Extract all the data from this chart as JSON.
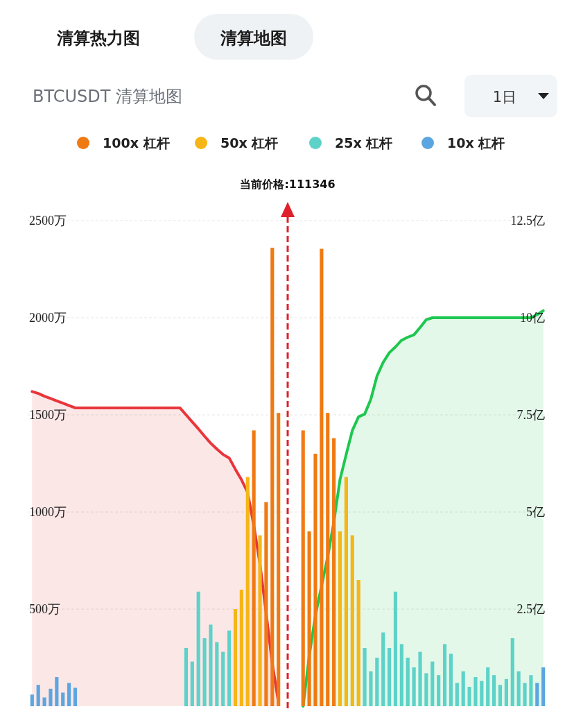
{
  "chart_data": {
    "type": "bar",
    "title": "BTCUSDT 清算地图",
    "annotations": [
      "清算热力图",
      "清算地图",
      "1日"
    ],
    "categories": [
      null,
      null,
      null,
      null,
      null,
      null,
      null,
      null,
      null,
      null,
      null,
      null,
      null,
      null,
      null,
      null,
      null,
      null,
      null,
      null,
      null,
      null,
      null,
      null,
      null,
      null,
      null,
      null,
      null,
      null,
      null,
      null,
      null,
      null,
      null,
      null,
      null,
      null,
      null,
      null,
      null,
      null,
      null,
      null,
      null,
      null,
      null,
      null,
      null,
      null,
      null,
      null,
      null,
      null,
      null,
      null,
      null,
      null,
      null,
      null,
      null,
      null,
      null,
      null,
      null,
      null,
      null,
      null,
      null,
      null,
      null,
      null,
      null,
      null,
      null,
      null,
      null,
      null,
      null,
      null,
      null,
      null,
      null,
      null
    ],
    "ylim": [
      0,
      2500
    ],
    "yticks": [
      {
        "value": 500,
        "label": "500万"
      },
      {
        "value": 1000,
        "label": "1000万"
      },
      {
        "value": 1500,
        "label": "1500万"
      },
      {
        "value": 2000,
        "label": "2000万"
      },
      {
        "value": 2500,
        "label": "2500万"
      }
    ],
    "y2lim": [
      0,
      12.5
    ],
    "y2ticks": [
      {
        "value": 2.5,
        "label": "2.5亿"
      },
      {
        "value": 5,
        "label": "5亿"
      },
      {
        "value": 7.5,
        "label": "7.5亿"
      },
      {
        "value": 10,
        "label": "10亿"
      },
      {
        "value": 12.5,
        "label": "12.5亿"
      }
    ],
    "tick_labels": [
      "y",
      "y2"
    ],
    "grid": "y",
    "legend": "top",
    "ref_lines": [
      {
        "axis": "x",
        "label": "当前价格:111346",
        "color": "#e0202a",
        "line_style": "dashed"
      }
    ],
    "series": [
      {
        "name": "100x 杠杆",
        "color": "#f07a12",
        "values": [
          null,
          null,
          null,
          null,
          null,
          null,
          null,
          null,
          null,
          null,
          null,
          null,
          null,
          null,
          null,
          null,
          null,
          null,
          null,
          null,
          null,
          null,
          null,
          null,
          null,
          null,
          null,
          null,
          null,
          null,
          null,
          null,
          null,
          null,
          null,
          null,
          1420,
          null,
          1050,
          2360,
          1510,
          null,
          null,
          null,
          1420,
          900,
          1300,
          2355,
          1510,
          1380,
          null,
          null,
          null,
          null,
          null,
          null,
          null,
          null,
          null,
          null,
          null,
          null,
          null,
          null,
          null,
          null,
          null,
          null,
          null,
          null,
          null,
          null,
          null,
          null,
          null,
          null,
          null,
          null,
          null,
          null,
          null,
          null,
          null,
          null
        ]
      },
      {
        "name": "50x 杠杆",
        "color": "#f5b616",
        "values": [
          null,
          null,
          null,
          null,
          null,
          null,
          null,
          null,
          null,
          null,
          null,
          null,
          null,
          null,
          null,
          null,
          null,
          null,
          null,
          null,
          null,
          null,
          null,
          null,
          null,
          null,
          null,
          null,
          null,
          null,
          null,
          null,
          null,
          500,
          600,
          1180,
          null,
          880,
          null,
          null,
          null,
          null,
          null,
          null,
          null,
          null,
          null,
          null,
          null,
          null,
          900,
          1180,
          880,
          650,
          null,
          null,
          null,
          null,
          null,
          null,
          null,
          null,
          null,
          null,
          null,
          null,
          null,
          null,
          null,
          null,
          null,
          null,
          null,
          null,
          null,
          null,
          null,
          null,
          null,
          null,
          null,
          null,
          null,
          null
        ]
      },
      {
        "name": "25x 杠杆",
        "color": "#5dd2c8",
        "values": [
          null,
          null,
          null,
          null,
          null,
          null,
          null,
          null,
          null,
          null,
          null,
          null,
          null,
          null,
          null,
          null,
          null,
          null,
          null,
          null,
          null,
          null,
          null,
          null,
          null,
          300,
          230,
          590,
          350,
          420,
          330,
          280,
          390,
          null,
          null,
          null,
          null,
          null,
          null,
          null,
          null,
          null,
          null,
          null,
          null,
          null,
          null,
          null,
          null,
          null,
          null,
          null,
          null,
          null,
          300,
          180,
          250,
          380,
          300,
          590,
          320,
          250,
          200,
          280,
          170,
          230,
          160,
          320,
          270,
          120,
          180,
          100,
          150,
          130,
          200,
          160,
          110,
          140,
          350,
          180,
          120,
          160,
          null,
          null
        ]
      },
      {
        "name": "10x 杠杆",
        "color": "#5ba6e0",
        "values": [
          60,
          110,
          45,
          90,
          150,
          70,
          120,
          95,
          null,
          null,
          null,
          null,
          null,
          null,
          null,
          null,
          null,
          null,
          null,
          null,
          null,
          null,
          null,
          null,
          null,
          null,
          null,
          null,
          null,
          null,
          null,
          null,
          null,
          null,
          null,
          null,
          null,
          null,
          null,
          null,
          null,
          null,
          null,
          null,
          null,
          null,
          null,
          null,
          null,
          null,
          null,
          null,
          null,
          null,
          null,
          null,
          null,
          null,
          null,
          null,
          null,
          null,
          null,
          null,
          null,
          null,
          null,
          null,
          null,
          null,
          null,
          null,
          null,
          null,
          null,
          null,
          null,
          null,
          null,
          null,
          null,
          null,
          120,
          200
        ]
      },
      {
        "type": "area",
        "axis": "y2",
        "color": "#e8363c",
        "values": [
          8.1,
          8.05,
          7.98,
          7.92,
          7.86,
          7.8,
          7.74,
          7.68,
          7.68,
          7.68,
          7.68,
          7.68,
          7.68,
          7.68,
          7.68,
          7.68,
          7.68,
          7.68,
          7.68,
          7.68,
          7.68,
          7.68,
          7.68,
          7.68,
          7.68,
          7.5,
          7.32,
          7.14,
          6.95,
          6.77,
          6.62,
          6.48,
          6.39,
          6.1,
          5.83,
          5.5,
          4.65,
          3.66,
          2.4,
          1.1,
          0.1,
          null,
          null,
          null,
          null,
          null,
          null,
          null,
          null,
          null,
          null,
          null,
          null,
          null,
          null,
          null,
          null,
          null,
          null,
          null,
          null,
          null,
          null,
          null,
          null,
          null,
          null,
          null,
          null,
          null,
          null,
          null,
          null,
          null,
          null,
          null,
          null,
          null,
          null,
          null,
          null,
          null,
          null,
          null
        ]
      },
      {
        "type": "area",
        "axis": "y2",
        "color": "#1ec74f",
        "values": [
          null,
          null,
          null,
          null,
          null,
          null,
          null,
          null,
          null,
          null,
          null,
          null,
          null,
          null,
          null,
          null,
          null,
          null,
          null,
          null,
          null,
          null,
          null,
          null,
          null,
          null,
          null,
          null,
          null,
          null,
          null,
          null,
          null,
          null,
          null,
          null,
          null,
          null,
          null,
          null,
          null,
          null,
          null,
          null,
          0,
          1.3,
          2.34,
          3.1,
          3.85,
          4.75,
          5.84,
          6.48,
          7.1,
          7.45,
          7.52,
          7.9,
          8.5,
          8.85,
          9.1,
          9.25,
          9.42,
          9.5,
          9.56,
          9.75,
          9.95,
          10,
          10,
          10,
          10,
          10,
          10,
          10,
          10,
          10,
          10,
          10,
          10,
          10,
          10,
          10,
          10,
          10,
          10.08,
          10.18
        ]
      }
    ]
  }
}
